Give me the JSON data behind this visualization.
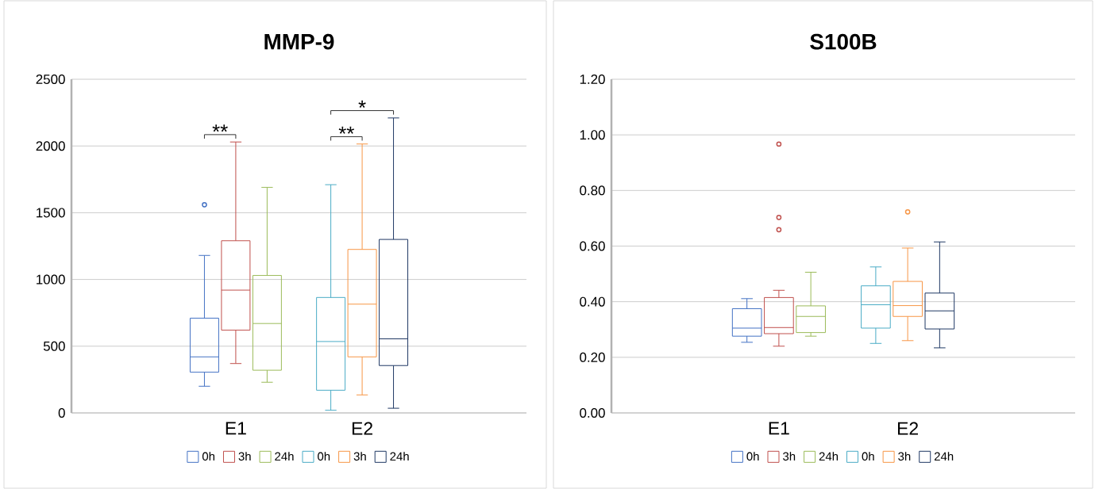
{
  "chart_data": [
    {
      "type": "box",
      "title": "MMP-9",
      "categories": [
        "E1",
        "E2"
      ],
      "series": [
        {
          "name": "0h",
          "color": "#4472c4",
          "boxes": [
            {
              "low": 200,
              "q1": 305,
              "median": 420,
              "q3": 710,
              "high": 1180,
              "outliers": [
                1560
              ]
            },
            null
          ]
        },
        {
          "name": "3h",
          "color": "#c0504d",
          "boxes": [
            {
              "low": 370,
              "q1": 620,
              "median": 920,
              "q3": 1290,
              "high": 2030
            },
            null
          ]
        },
        {
          "name": "24h",
          "color": "#9bbb59",
          "boxes": [
            {
              "low": 230,
              "q1": 320,
              "median": 670,
              "q3": 1030,
              "high": 1690
            },
            null
          ]
        },
        {
          "name": "0h",
          "color": "#4bacc6",
          "boxes": [
            null,
            {
              "low": 20,
              "q1": 170,
              "median": 535,
              "q3": 865,
              "high": 1710
            }
          ]
        },
        {
          "name": "3h",
          "color": "#f79646",
          "boxes": [
            null,
            {
              "low": 135,
              "q1": 420,
              "median": 815,
              "q3": 1225,
              "high": 2015
            }
          ]
        },
        {
          "name": "24h",
          "color": "#1f3864",
          "boxes": [
            null,
            {
              "low": 35,
              "q1": 355,
              "median": 555,
              "q3": 1300,
              "high": 2210
            }
          ]
        }
      ],
      "ylim": [
        0,
        2500
      ],
      "yticks": [
        0,
        500,
        1000,
        1500,
        2000,
        2500
      ],
      "grid": "y",
      "legend": "bottom",
      "annotations": [
        "**",
        "**",
        "*"
      ]
    },
    {
      "type": "box",
      "title": "S100B",
      "categories": [
        "E1",
        "E2"
      ],
      "series": [
        {
          "name": "0h",
          "color": "#4472c4",
          "boxes": [
            {
              "low": 0.254,
              "q1": 0.276,
              "median": 0.305,
              "q3": 0.375,
              "high": 0.411
            },
            null
          ]
        },
        {
          "name": "3h",
          "color": "#c0504d",
          "boxes": [
            {
              "low": 0.24,
              "q1": 0.285,
              "median": 0.307,
              "q3": 0.415,
              "high": 0.441,
              "outliers": [
                0.967,
                0.703,
                0.659
              ]
            },
            null
          ]
        },
        {
          "name": "24h",
          "color": "#9bbb59",
          "boxes": [
            {
              "low": 0.276,
              "q1": 0.289,
              "median": 0.347,
              "q3": 0.385,
              "high": 0.506
            },
            null
          ]
        },
        {
          "name": "0h",
          "color": "#4bacc6",
          "boxes": [
            null,
            {
              "low": 0.25,
              "q1": 0.305,
              "median": 0.389,
              "q3": 0.457,
              "high": 0.525
            }
          ]
        },
        {
          "name": "3h",
          "color": "#f79646",
          "boxes": [
            null,
            {
              "low": 0.26,
              "q1": 0.347,
              "median": 0.386,
              "q3": 0.473,
              "high": 0.593,
              "outliers": [
                0.723
              ]
            }
          ]
        },
        {
          "name": "24h",
          "color": "#1f3864",
          "boxes": [
            null,
            {
              "low": 0.234,
              "q1": 0.302,
              "median": 0.367,
              "q3": 0.431,
              "high": 0.615
            }
          ]
        }
      ],
      "ylim": [
        0,
        1.2
      ],
      "yticks": [
        {
          "value": 0,
          "label": "0.00"
        },
        {
          "value": 0.2,
          "label": "0.20"
        },
        {
          "value": 0.4,
          "label": "0.40"
        },
        {
          "value": 0.6,
          "label": "0.60"
        },
        {
          "value": 0.8,
          "label": "0.80"
        },
        {
          "value": 1.0,
          "label": "1.00"
        },
        {
          "value": 1.2,
          "label": "1.20"
        }
      ],
      "grid": "y",
      "legend": "bottom"
    }
  ]
}
